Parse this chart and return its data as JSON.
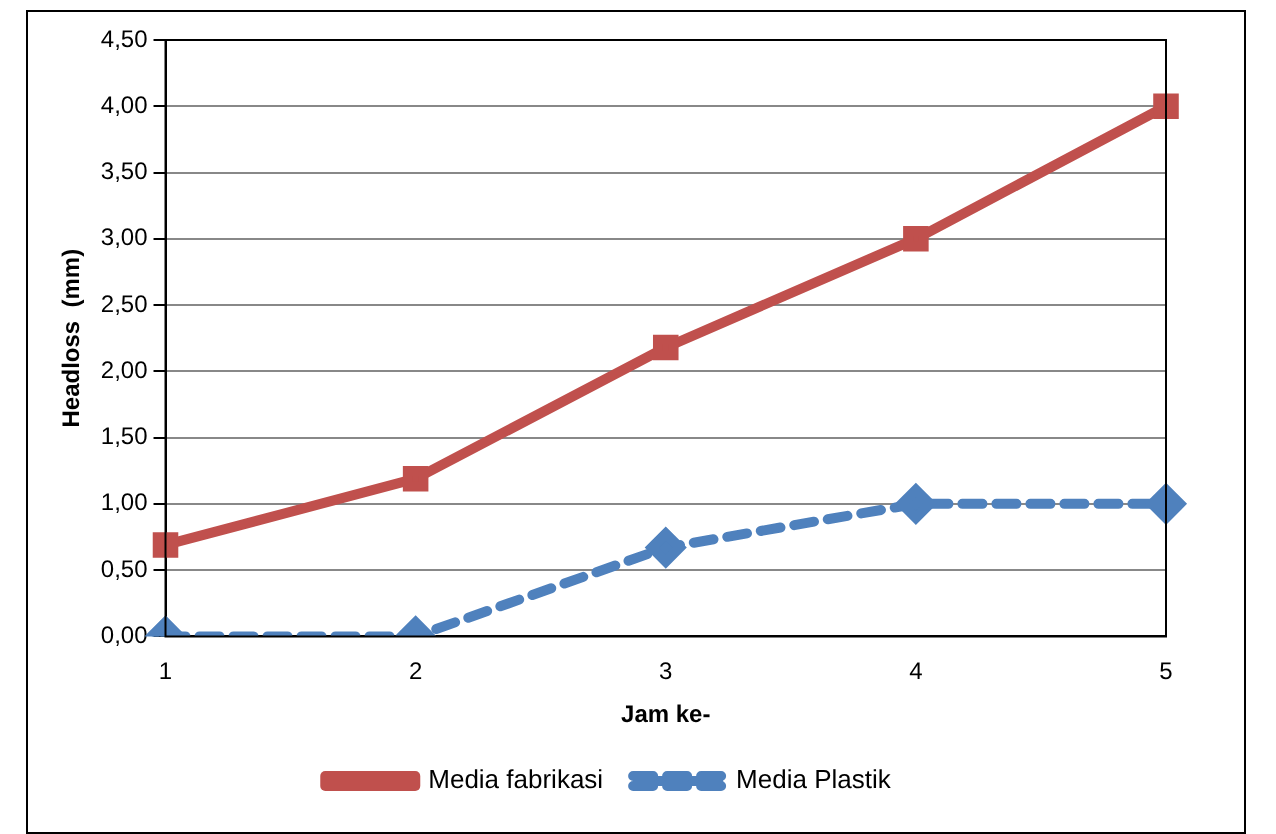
{
  "chart_data": {
    "type": "line",
    "xlabel": "Jam ke-",
    "ylabel": "Headloss  (mm)",
    "categories": [
      "1",
      "2",
      "3",
      "4",
      "5"
    ],
    "series": [
      {
        "name": "Media fabrikasi",
        "color": "#c0504d",
        "values": [
          0.69,
          1.19,
          2.18,
          3.0,
          4.0
        ],
        "marker": "square",
        "line_style": "solid"
      },
      {
        "name": "Media Plastik",
        "color": "#4f81bd",
        "values": [
          0,
          0,
          0.67,
          1.0,
          1.0
        ],
        "marker": "diamond",
        "line_style": "dashed"
      }
    ],
    "ylim": [
      0,
      4.5
    ],
    "yticks": [
      {
        "value": 0,
        "label": "0,00"
      },
      {
        "value": 0.5,
        "label": "0,50"
      },
      {
        "value": 1,
        "label": "1,00"
      },
      {
        "value": 1.5,
        "label": "1,50"
      },
      {
        "value": 2,
        "label": "2,00"
      },
      {
        "value": 2.5,
        "label": "2,50"
      },
      {
        "value": 3,
        "label": "3,00"
      },
      {
        "value": 3.5,
        "label": "3,50"
      },
      {
        "value": 4,
        "label": "4,00"
      },
      {
        "value": 4.5,
        "label": "4,50"
      }
    ],
    "grid": "y",
    "legend": "bottom"
  }
}
